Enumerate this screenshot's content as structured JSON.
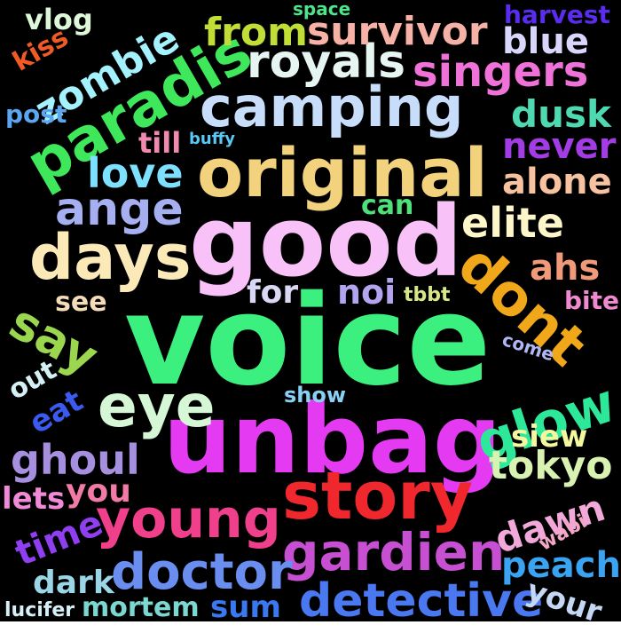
{
  "words": [
    {
      "id": "voice",
      "text": "voice",
      "color": "#3cf07f"
    },
    {
      "id": "unbag",
      "text": "unbag",
      "color": "#e33af2"
    },
    {
      "id": "good",
      "text": "good",
      "color": "#f8c2f8"
    },
    {
      "id": "original",
      "text": "original",
      "color": "#f2d27c"
    },
    {
      "id": "story",
      "text": "story",
      "color": "#f0282e"
    },
    {
      "id": "camping",
      "text": "camping",
      "color": "#c8ddfa"
    },
    {
      "id": "paradis",
      "text": "paradis",
      "color": "#3ee85a"
    },
    {
      "id": "days",
      "text": "days",
      "color": "#fbe9b8"
    },
    {
      "id": "dont",
      "text": "dont",
      "color": "#f0a71a"
    },
    {
      "id": "glow",
      "text": "glow",
      "color": "#2ee89a"
    },
    {
      "id": "eye",
      "text": "eye",
      "color": "#d6f7d6"
    },
    {
      "id": "young",
      "text": "young",
      "color": "#f0408c"
    },
    {
      "id": "gardien",
      "text": "gardien",
      "color": "#c64fd2"
    },
    {
      "id": "doctor",
      "text": "doctor",
      "color": "#6a8ef0"
    },
    {
      "id": "detective",
      "text": "detective",
      "color": "#4a78f0"
    },
    {
      "id": "royals",
      "text": "royals",
      "color": "#e6f5f2"
    },
    {
      "id": "survivor",
      "text": "survivor",
      "color": "#f7b2a7"
    },
    {
      "id": "zombie",
      "text": "zombie",
      "color": "#a5f2ff"
    },
    {
      "id": "singers",
      "text": "singers",
      "color": "#ee72d8"
    },
    {
      "id": "from",
      "text": "from",
      "color": "#c1de36"
    },
    {
      "id": "ange",
      "text": "ange",
      "color": "#a6aff0"
    },
    {
      "id": "elite",
      "text": "elite",
      "color": "#fdf6c8"
    },
    {
      "id": "love",
      "text": "love",
      "color": "#7ee0ff"
    },
    {
      "id": "ghoul",
      "text": "ghoul",
      "color": "#a68fdf"
    },
    {
      "id": "tokyo",
      "text": "tokyo",
      "color": "#d7f2b1"
    },
    {
      "id": "say",
      "text": "say",
      "color": "#9ad74f"
    },
    {
      "id": "blue",
      "text": "blue",
      "color": "#d9d6fb"
    },
    {
      "id": "dusk",
      "text": "dusk",
      "color": "#4fd9b0"
    },
    {
      "id": "never",
      "text": "never",
      "color": "#a43ce6"
    },
    {
      "id": "alone",
      "text": "alone",
      "color": "#f6c2a0"
    },
    {
      "id": "ahs",
      "text": "ahs",
      "color": "#f09a7a"
    },
    {
      "id": "noi",
      "text": "noi",
      "color": "#b4a4f0"
    },
    {
      "id": "for",
      "text": "for",
      "color": "#d8d8f4"
    },
    {
      "id": "dawn",
      "text": "dawn",
      "color": "#f2a8d8"
    },
    {
      "id": "peach",
      "text": "peach",
      "color": "#3ba4f2"
    },
    {
      "id": "your",
      "text": "your",
      "color": "#c4d7f3"
    },
    {
      "id": "siew",
      "text": "siew",
      "color": "#f5f79e"
    },
    {
      "id": "time",
      "text": "time",
      "color": "#8f3ef0"
    },
    {
      "id": "you",
      "text": "you",
      "color": "#f17aa6"
    },
    {
      "id": "lets",
      "text": "lets",
      "color": "#f08ad8"
    },
    {
      "id": "dark",
      "text": "dark",
      "color": "#9ad6e6"
    },
    {
      "id": "mortem",
      "text": "mortem",
      "color": "#7ad8d0"
    },
    {
      "id": "sum",
      "text": "sum",
      "color": "#3a78f0"
    },
    {
      "id": "lucifer",
      "text": "lucifer",
      "color": "#d6f0f8"
    },
    {
      "id": "vlog",
      "text": "vlog",
      "color": "#ddf7d8"
    },
    {
      "id": "kiss",
      "text": "kiss",
      "color": "#f05a24"
    },
    {
      "id": "space",
      "text": "space",
      "color": "#4ee48a"
    },
    {
      "id": "harvest",
      "text": "harvest",
      "color": "#5a2cf0"
    },
    {
      "id": "post",
      "text": "post",
      "color": "#5aa6f0"
    },
    {
      "id": "till",
      "text": "till",
      "color": "#f08ab0"
    },
    {
      "id": "buffy",
      "text": "buffy",
      "color": "#5ac8f4"
    },
    {
      "id": "can",
      "text": "can",
      "color": "#4ee07a"
    },
    {
      "id": "see",
      "text": "see",
      "color": "#f4dcb8"
    },
    {
      "id": "tbbt",
      "text": "tbbt",
      "color": "#d6e886"
    },
    {
      "id": "bite",
      "text": "bite",
      "color": "#f08ad0"
    },
    {
      "id": "come",
      "text": "come",
      "color": "#b0b8f4"
    },
    {
      "id": "out",
      "text": "out",
      "color": "#d4f0f4"
    },
    {
      "id": "eat",
      "text": "eat",
      "color": "#3a5af0"
    },
    {
      "id": "show",
      "text": "show",
      "color": "#8ad0f4"
    },
    {
      "id": "wabi",
      "text": "wabi",
      "color": "#f4a6c6"
    }
  ]
}
